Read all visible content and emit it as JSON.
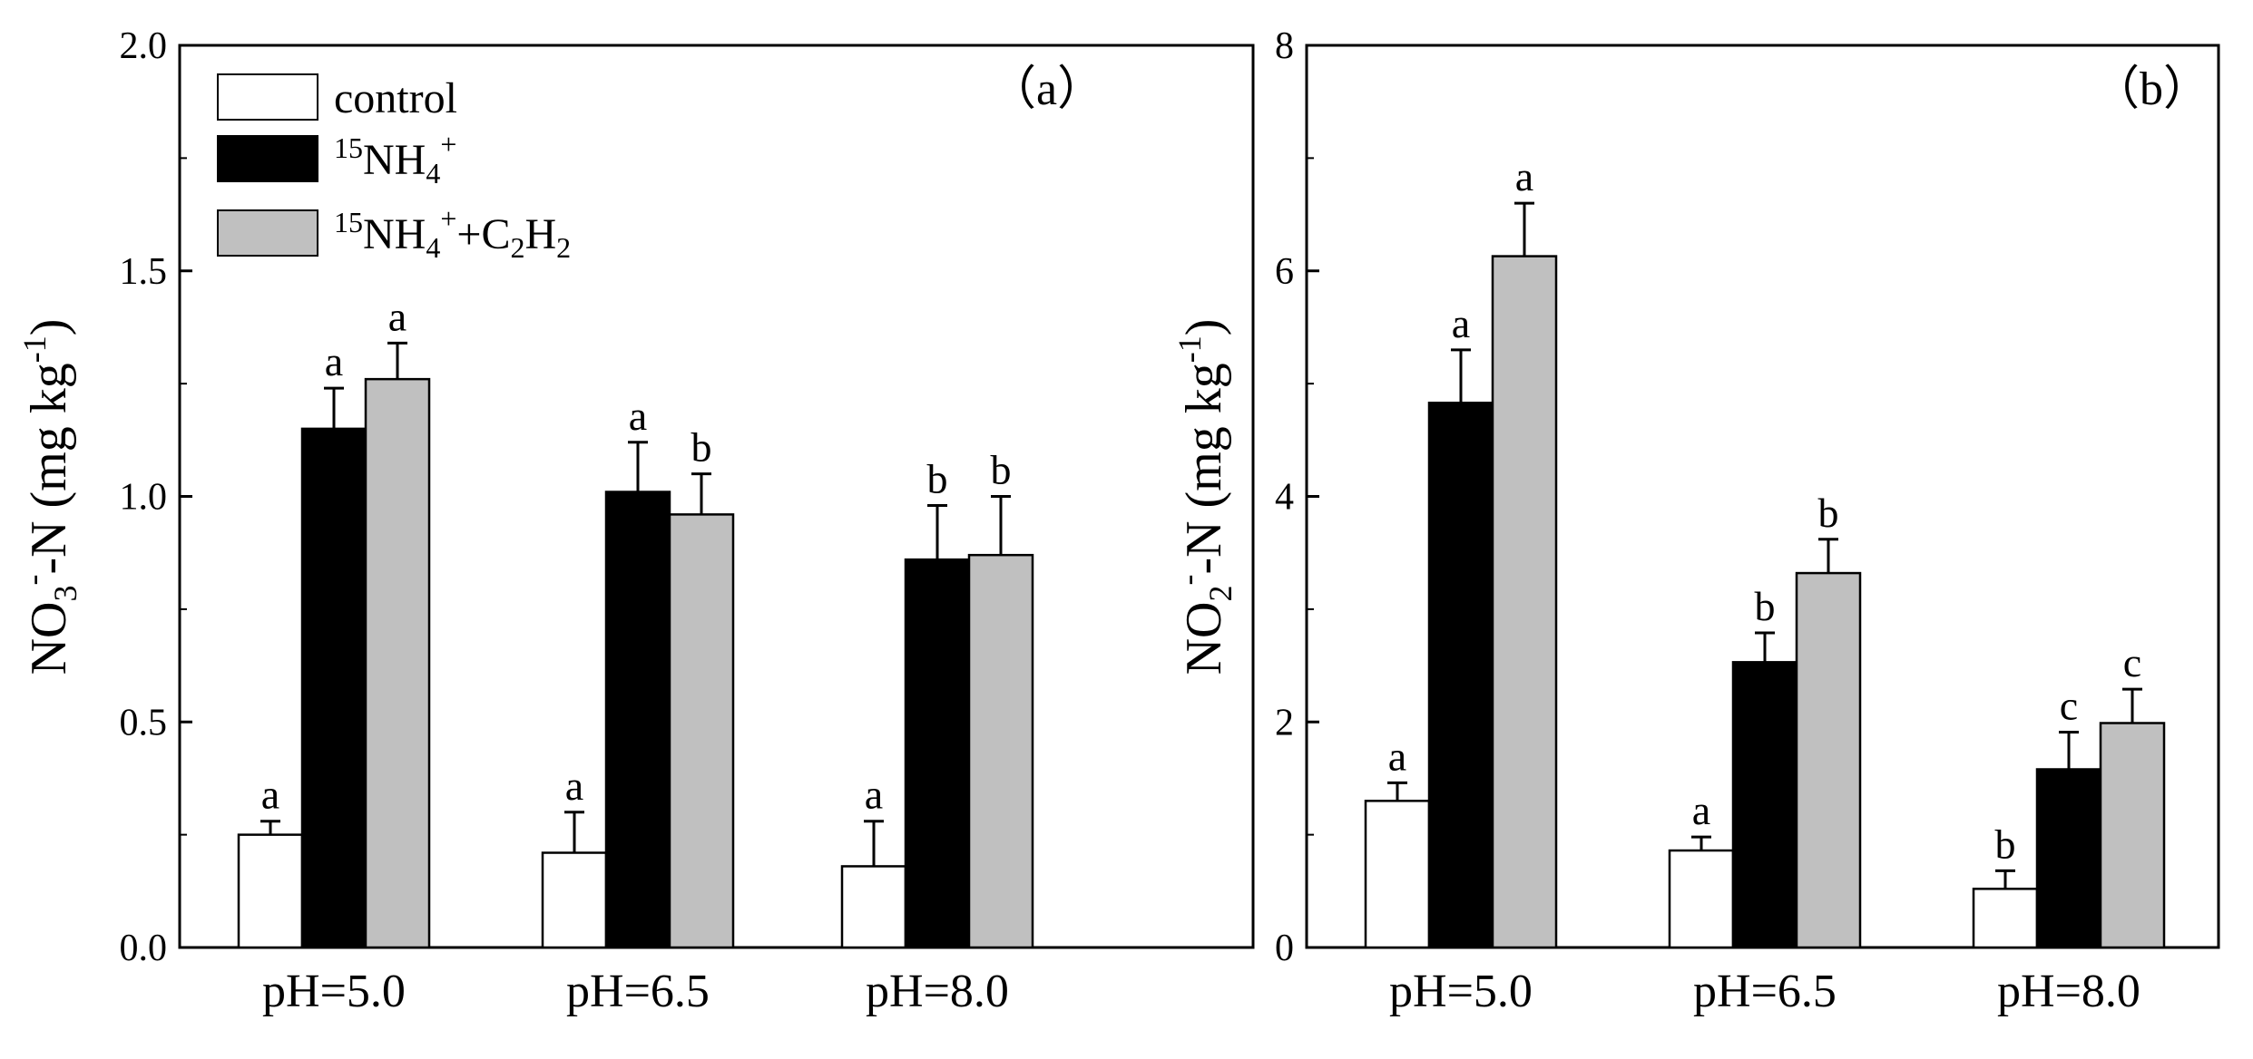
{
  "chart_data": [
    {
      "type": "bar",
      "panel_label": "（a）",
      "categories": [
        "pH=5.0",
        "pH=6.5",
        "pH=8.0"
      ],
      "ylabel": {
        "prefix": "NO",
        "sub": "3",
        "sup": "-",
        "unit_main": "-N (mg kg",
        "unit_sup": "-1",
        "close": ")"
      },
      "ylim": [
        0,
        2.0
      ],
      "yticks": [
        "0.0",
        "0.5",
        "1.0",
        "1.5",
        "2.0"
      ],
      "series": [
        {
          "name": "control",
          "values": [
            0.25,
            0.21,
            0.18
          ],
          "errors": [
            0.03,
            0.09,
            0.1
          ],
          "letters": [
            "a",
            "a",
            "a"
          ]
        },
        {
          "name": "15NH4+",
          "values": [
            1.15,
            1.01,
            0.86
          ],
          "errors": [
            0.09,
            0.11,
            0.12
          ],
          "letters": [
            "a",
            "a",
            "b"
          ]
        },
        {
          "name": "15NH4++C2H2",
          "values": [
            1.26,
            0.96,
            0.87
          ],
          "errors": [
            0.08,
            0.09,
            0.13
          ],
          "letters": [
            "a",
            "b",
            "b"
          ]
        }
      ],
      "legend": {
        "placement": "top-left",
        "entries": [
          {
            "name": "control",
            "color": "#ffffff"
          },
          {
            "name": "15NH4+",
            "color": "#000000"
          },
          {
            "name": "15NH4++C2H2",
            "color": "#c0c0c0"
          }
        ]
      }
    },
    {
      "type": "bar",
      "panel_label": "（b）",
      "categories": [
        "pH=5.0",
        "pH=6.5",
        "pH=8.0"
      ],
      "ylabel": {
        "prefix": "NO",
        "sub": "2",
        "sup": "-",
        "unit_main": "-N (mg kg",
        "unit_sup": "-1",
        "close": ")"
      },
      "ylim": [
        0,
        8
      ],
      "yticks": [
        "0",
        "2",
        "4",
        "6",
        "8"
      ],
      "series": [
        {
          "name": "control",
          "values": [
            1.3,
            0.86,
            0.52
          ],
          "errors": [
            0.16,
            0.12,
            0.16
          ],
          "letters": [
            "a",
            "a",
            "b"
          ]
        },
        {
          "name": "15NH4+",
          "values": [
            4.83,
            2.53,
            1.58
          ],
          "errors": [
            0.47,
            0.26,
            0.33
          ],
          "letters": [
            "a",
            "b",
            "c"
          ]
        },
        {
          "name": "15NH4++C2H2",
          "values": [
            6.13,
            3.32,
            1.99
          ],
          "errors": [
            0.47,
            0.3,
            0.3
          ],
          "letters": [
            "a",
            "b",
            "c"
          ]
        }
      ]
    }
  ],
  "legend_text": {
    "control": "control",
    "nh4_pre": "15",
    "nh4_main": "NH",
    "nh4_sub": "4",
    "nh4_sup": "+",
    "c2h2_plus": "+C",
    "c2h2_sub1": "2",
    "c2h2_h": "H",
    "c2h2_sub2": "2"
  },
  "colors": {
    "control": "#ffffff",
    "nh4": "#000000",
    "nh4_c2h2": "#c0c0c0",
    "axis": "#000000"
  }
}
